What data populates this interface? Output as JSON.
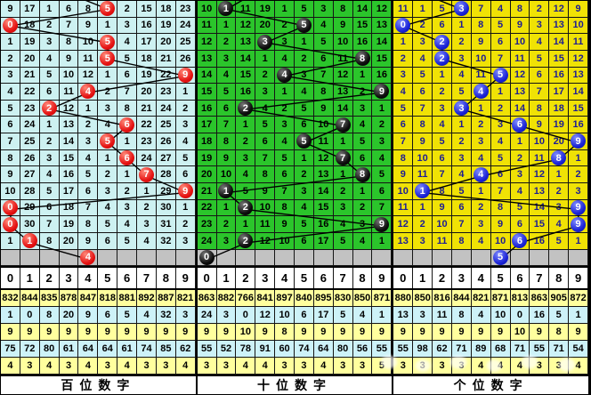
{
  "header_digits": [
    "0",
    "1",
    "2",
    "3",
    "4",
    "5",
    "6",
    "7",
    "8",
    "9"
  ],
  "colors": {
    "hundreds_cell_bg": "#cdf1f1",
    "hundreds_ball": "#e51212",
    "tens_cell_bg": "#2bc52b",
    "tens_ball": "#0c0c0c",
    "units_cell_bg": "#f0e205",
    "units_ball": "#1b23d6",
    "units_text": "#1c1c94",
    "pending_row_bg": "#c2c2c2",
    "stats_row_yellow": "#ffff9e",
    "stats_row_cyan": "#cdf2f8"
  },
  "panels": [
    {
      "title": "百位数字",
      "theme": "p-cyan",
      "ball_class": "b-red",
      "top_exit_col": 4.2,
      "rows": [
        {
          "cells": [
            9,
            17,
            1,
            6,
            8,
            5,
            2,
            15,
            18,
            23
          ],
          "ball": 5
        },
        {
          "cells": [
            0,
            18,
            2,
            7,
            9,
            1,
            3,
            16,
            19,
            24
          ],
          "ball": 0
        },
        {
          "cells": [
            1,
            19,
            3,
            8,
            10,
            5,
            4,
            17,
            20,
            25
          ],
          "ball": 5
        },
        {
          "cells": [
            2,
            20,
            4,
            9,
            11,
            5,
            5,
            18,
            21,
            26
          ],
          "ball": 5
        },
        {
          "cells": [
            3,
            21,
            5,
            10,
            12,
            1,
            6,
            19,
            22,
            9
          ],
          "ball": 9
        },
        {
          "cells": [
            4,
            22,
            6,
            11,
            4,
            2,
            7,
            20,
            23,
            1
          ],
          "ball": 4
        },
        {
          "cells": [
            5,
            23,
            2,
            12,
            1,
            3,
            8,
            21,
            24,
            2
          ],
          "ball": 2
        },
        {
          "cells": [
            6,
            24,
            1,
            13,
            2,
            4,
            6,
            22,
            25,
            3
          ],
          "ball": 6
        },
        {
          "cells": [
            7,
            25,
            2,
            14,
            3,
            5,
            1,
            23,
            26,
            4
          ],
          "ball": 5
        },
        {
          "cells": [
            8,
            26,
            3,
            15,
            4,
            1,
            6,
            24,
            27,
            5
          ],
          "ball": 6
        },
        {
          "cells": [
            9,
            27,
            4,
            16,
            5,
            2,
            1,
            7,
            28,
            6
          ],
          "ball": 7
        },
        {
          "cells": [
            10,
            28,
            5,
            17,
            6,
            3,
            2,
            1,
            29,
            9
          ],
          "ball": 9
        },
        {
          "cells": [
            0,
            29,
            6,
            18,
            7,
            4,
            3,
            2,
            30,
            1
          ],
          "ball": 0
        },
        {
          "cells": [
            0,
            30,
            7,
            19,
            8,
            5,
            4,
            3,
            31,
            2
          ],
          "ball": 0
        },
        {
          "cells": [
            1,
            1,
            8,
            20,
            9,
            6,
            5,
            4,
            32,
            3
          ],
          "ball": 1
        }
      ],
      "next_ball": 4,
      "stats": [
        [
          832,
          844,
          835,
          878,
          847,
          818,
          881,
          892,
          887,
          821
        ],
        [
          1,
          0,
          8,
          20,
          9,
          6,
          5,
          4,
          32,
          3
        ],
        [
          9,
          9,
          9,
          9,
          9,
          9,
          9,
          9,
          9,
          9
        ],
        [
          75,
          72,
          80,
          61,
          64,
          64,
          61,
          74,
          85,
          62
        ],
        [
          4,
          3,
          4,
          3,
          4,
          3,
          4,
          3,
          3,
          4
        ]
      ]
    },
    {
      "title": "十位数字",
      "theme": "p-green",
      "ball_class": "b-black",
      "top_exit_col": 2.4,
      "rows": [
        {
          "cells": [
            10,
            1,
            11,
            19,
            1,
            5,
            3,
            8,
            14,
            12
          ],
          "ball": 1
        },
        {
          "cells": [
            11,
            1,
            12,
            20,
            2,
            5,
            4,
            9,
            15,
            13
          ],
          "ball": 5
        },
        {
          "cells": [
            12,
            2,
            13,
            3,
            3,
            1,
            5,
            10,
            16,
            14
          ],
          "ball": 3
        },
        {
          "cells": [
            13,
            3,
            14,
            1,
            4,
            2,
            6,
            11,
            8,
            15
          ],
          "ball": 8
        },
        {
          "cells": [
            14,
            4,
            15,
            2,
            4,
            3,
            7,
            12,
            1,
            16
          ],
          "ball": 4
        },
        {
          "cells": [
            15,
            5,
            16,
            3,
            1,
            4,
            8,
            13,
            2,
            9
          ],
          "ball": 9
        },
        {
          "cells": [
            16,
            6,
            2,
            4,
            2,
            5,
            9,
            14,
            3,
            1
          ],
          "ball": 2
        },
        {
          "cells": [
            17,
            7,
            1,
            5,
            3,
            6,
            10,
            7,
            4,
            2
          ],
          "ball": 7
        },
        {
          "cells": [
            18,
            8,
            2,
            6,
            4,
            5,
            11,
            1,
            5,
            3
          ],
          "ball": 5
        },
        {
          "cells": [
            19,
            9,
            3,
            7,
            5,
            1,
            12,
            7,
            6,
            4
          ],
          "ball": 7
        },
        {
          "cells": [
            20,
            10,
            4,
            8,
            6,
            2,
            13,
            1,
            8,
            5
          ],
          "ball": 8
        },
        {
          "cells": [
            21,
            1,
            5,
            9,
            7,
            3,
            14,
            2,
            1,
            6
          ],
          "ball": 1
        },
        {
          "cells": [
            22,
            1,
            2,
            10,
            8,
            4,
            15,
            3,
            2,
            7
          ],
          "ball": 2
        },
        {
          "cells": [
            23,
            2,
            1,
            11,
            9,
            5,
            16,
            4,
            3,
            9
          ],
          "ball": 9
        },
        {
          "cells": [
            24,
            3,
            2,
            12,
            10,
            6,
            17,
            5,
            4,
            1
          ],
          "ball": 2
        }
      ],
      "next_ball": 0,
      "stats": [
        [
          863,
          882,
          766,
          841,
          897,
          840,
          895,
          830,
          850,
          871
        ],
        [
          24,
          3,
          0,
          12,
          10,
          6,
          17,
          5,
          4,
          1
        ],
        [
          9,
          9,
          10,
          9,
          8,
          9,
          9,
          9,
          9,
          9
        ],
        [
          55,
          52,
          78,
          91,
          60,
          74,
          64,
          80,
          56,
          55
        ],
        [
          3,
          3,
          4,
          4,
          3,
          3,
          4,
          3,
          3,
          5
        ]
      ]
    },
    {
      "title": "个位数字",
      "theme": "p-yellow",
      "ball_class": "b-blue",
      "top_exit_col": 2.2,
      "rows": [
        {
          "cells": [
            11,
            1,
            5,
            3,
            7,
            4,
            8,
            2,
            12,
            9
          ],
          "ball": 3
        },
        {
          "cells": [
            0,
            2,
            6,
            1,
            8,
            5,
            9,
            3,
            13,
            10
          ],
          "ball": 0
        },
        {
          "cells": [
            1,
            3,
            2,
            2,
            9,
            6,
            10,
            4,
            14,
            11
          ],
          "ball": 2
        },
        {
          "cells": [
            2,
            4,
            2,
            3,
            10,
            7,
            11,
            5,
            15,
            12
          ],
          "ball": 2
        },
        {
          "cells": [
            3,
            5,
            1,
            4,
            11,
            5,
            12,
            6,
            16,
            13
          ],
          "ball": 5
        },
        {
          "cells": [
            4,
            6,
            2,
            5,
            4,
            1,
            13,
            7,
            17,
            14
          ],
          "ball": 4
        },
        {
          "cells": [
            5,
            7,
            3,
            3,
            1,
            2,
            14,
            8,
            18,
            15
          ],
          "ball": 3
        },
        {
          "cells": [
            6,
            8,
            4,
            1,
            2,
            3,
            6,
            9,
            19,
            16
          ],
          "ball": 6
        },
        {
          "cells": [
            7,
            9,
            5,
            2,
            3,
            4,
            1,
            10,
            20,
            9
          ],
          "ball": 9
        },
        {
          "cells": [
            8,
            10,
            6,
            3,
            4,
            5,
            2,
            11,
            8,
            1
          ],
          "ball": 8
        },
        {
          "cells": [
            9,
            11,
            7,
            4,
            4,
            6,
            3,
            12,
            1,
            2
          ],
          "ball": 4
        },
        {
          "cells": [
            10,
            1,
            8,
            5,
            1,
            7,
            4,
            13,
            2,
            3
          ],
          "ball": 1
        },
        {
          "cells": [
            11,
            1,
            9,
            6,
            2,
            8,
            5,
            14,
            3,
            9
          ],
          "ball": 9
        },
        {
          "cells": [
            12,
            2,
            10,
            7,
            3,
            9,
            6,
            15,
            4,
            9
          ],
          "ball": 9
        },
        {
          "cells": [
            13,
            3,
            11,
            8,
            4,
            10,
            6,
            16,
            5,
            1
          ],
          "ball": 6
        }
      ],
      "next_ball": 5,
      "stats": [
        [
          880,
          850,
          816,
          844,
          821,
          871,
          813,
          863,
          905,
          872
        ],
        [
          13,
          3,
          11,
          8,
          4,
          10,
          0,
          16,
          5,
          1
        ],
        [
          9,
          9,
          9,
          9,
          9,
          9,
          10,
          9,
          8,
          9
        ],
        [
          55,
          98,
          62,
          71,
          89,
          68,
          71,
          55,
          71,
          54
        ],
        [
          3,
          3,
          3,
          3,
          4,
          4,
          4,
          3,
          3,
          4
        ]
      ]
    }
  ],
  "chart_data": {
    "type": "table",
    "description": "3D lottery digit trend chart: per-column miss counts over 15 draws; ball marks drawn digit; gray row is next-draw pick; bottom stats rows per digit 0-9",
    "columns": [
      "0",
      "1",
      "2",
      "3",
      "4",
      "5",
      "6",
      "7",
      "8",
      "9"
    ],
    "series": [
      {
        "name": "百位数字 drawn sequence",
        "values": [
          5,
          0,
          5,
          5,
          9,
          4,
          2,
          6,
          5,
          6,
          7,
          9,
          0,
          0,
          1
        ],
        "next_pick": 4
      },
      {
        "name": "十位数字 drawn sequence",
        "values": [
          1,
          5,
          3,
          8,
          4,
          9,
          2,
          7,
          5,
          7,
          8,
          1,
          2,
          9,
          2
        ],
        "next_pick": 0
      },
      {
        "name": "个位数字 drawn sequence",
        "values": [
          3,
          0,
          2,
          2,
          5,
          4,
          3,
          6,
          9,
          8,
          4,
          1,
          9,
          9,
          6
        ],
        "next_pick": 5
      }
    ],
    "legend_position": "none",
    "grid": true
  }
}
